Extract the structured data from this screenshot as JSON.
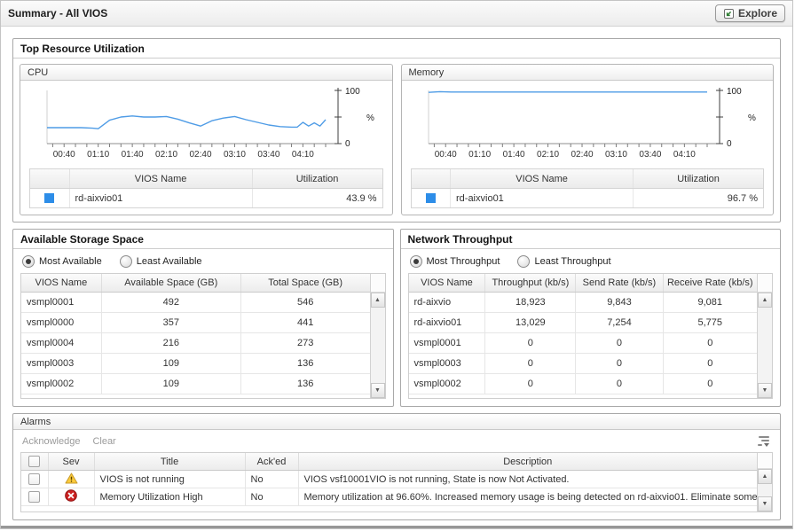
{
  "titlebar": {
    "title": "Summary - All VIOS",
    "explore": "Explore"
  },
  "top_resource": {
    "title": "Top Resource Utilization"
  },
  "chart_data": [
    {
      "type": "line",
      "title": "CPU",
      "ylabel": "%",
      "ylim": [
        0,
        100
      ],
      "yticks": [
        0,
        50,
        100
      ],
      "ytick_labels": [
        "0",
        "100"
      ],
      "x_tick_labels": [
        "00:40",
        "01:10",
        "01:40",
        "02:10",
        "02:40",
        "03:10",
        "03:40",
        "04:10"
      ],
      "x_label_minutes": [
        40,
        70,
        100,
        130,
        160,
        190,
        220,
        250
      ],
      "x_minor_step": 10,
      "x_range_minutes": [
        25,
        270
      ],
      "line_color": "#4f9ce6",
      "grid": false,
      "legend_position": "bottom-table",
      "series": [
        {
          "name": "rd-aixvio01",
          "x_minutes": [
            25,
            40,
            55,
            65,
            70,
            80,
            90,
            100,
            110,
            120,
            130,
            140,
            150,
            160,
            170,
            180,
            190,
            200,
            210,
            220,
            230,
            240,
            245,
            250,
            255,
            260,
            265,
            270
          ],
          "values": [
            30,
            30,
            30,
            29,
            28,
            44,
            50,
            52,
            50,
            50,
            51,
            46,
            39,
            33,
            43,
            48,
            51,
            45,
            40,
            35,
            32,
            31,
            31,
            40,
            33,
            39,
            33,
            45
          ]
        }
      ],
      "legend": {
        "swatch_color": "#2d8de8",
        "headers": [
          "VIOS Name",
          "Utilization"
        ],
        "rows": [
          {
            "name": "rd-aixvio01",
            "value": "43.9 %"
          }
        ]
      }
    },
    {
      "type": "line",
      "title": "Memory",
      "ylabel": "%",
      "ylim": [
        0,
        100
      ],
      "yticks": [
        0,
        50,
        100
      ],
      "ytick_labels": [
        "0",
        "100"
      ],
      "x_tick_labels": [
        "00:40",
        "01:10",
        "01:40",
        "02:10",
        "02:40",
        "03:10",
        "03:40",
        "04:10"
      ],
      "x_label_minutes": [
        40,
        70,
        100,
        130,
        160,
        190,
        220,
        250
      ],
      "x_minor_step": 10,
      "x_range_minutes": [
        25,
        270
      ],
      "line_color": "#4f9ce6",
      "grid": false,
      "legend_position": "bottom-table",
      "series": [
        {
          "name": "rd-aixvio01",
          "x_minutes": [
            25,
            35,
            45,
            60,
            80,
            100,
            120,
            140,
            160,
            180,
            200,
            220,
            240,
            260,
            270
          ],
          "values": [
            96.3,
            97.6,
            97,
            97,
            97,
            97,
            97,
            97,
            97,
            97,
            97,
            97,
            97,
            97,
            97
          ]
        }
      ],
      "legend": {
        "swatch_color": "#2d8de8",
        "headers": [
          "VIOS Name",
          "Utilization"
        ],
        "rows": [
          {
            "name": "rd-aixvio01",
            "value": "96.7 %"
          }
        ]
      }
    }
  ],
  "storage": {
    "title": "Available Storage Space",
    "radios": [
      {
        "label": "Most Available",
        "selected": true
      },
      {
        "label": "Least Available",
        "selected": false
      }
    ],
    "columns": [
      "VIOS Name",
      "Available Space (GB)",
      "Total Space (GB)"
    ],
    "col_widths": [
      "23%",
      "40%",
      "37%"
    ],
    "rows": [
      [
        "vsmpl0001",
        "492",
        "546"
      ],
      [
        "vsmpl0000",
        "357",
        "441"
      ],
      [
        "vsmpl0004",
        "216",
        "273"
      ],
      [
        "vsmpl0003",
        "109",
        "136"
      ],
      [
        "vsmpl0002",
        "109",
        "136"
      ]
    ]
  },
  "network": {
    "title": "Network Throughput",
    "radios": [
      {
        "label": "Most Throughput",
        "selected": true
      },
      {
        "label": "Least Throughput",
        "selected": false
      }
    ],
    "columns": [
      "VIOS Name",
      "Throughput (kb/s)",
      "Send Rate (kb/s)",
      "Receive Rate (kb/s)"
    ],
    "col_widths": [
      "22%",
      "26%",
      "25%",
      "27%"
    ],
    "rows": [
      [
        "rd-aixvio",
        "18,923",
        "9,843",
        "9,081"
      ],
      [
        "rd-aixvio01",
        "13,029",
        "7,254",
        "5,775"
      ],
      [
        "vsmpl0001",
        "0",
        "0",
        "0"
      ],
      [
        "vsmpl0003",
        "0",
        "0",
        "0"
      ],
      [
        "vsmpl0002",
        "0",
        "0",
        "0"
      ]
    ]
  },
  "alarms": {
    "title": "Alarms",
    "toolbar": {
      "acknowledge": "Acknowledge",
      "clear": "Clear"
    },
    "columns": [
      "Sev",
      "Title",
      "Ack'ed",
      "Description"
    ],
    "rows": [
      {
        "severity": "warning",
        "title": "VIOS is not running",
        "acked": "No",
        "description": "VIOS vsf10001VIO is not running, State is now Not Activated."
      },
      {
        "severity": "fatal",
        "title": "Memory Utilization High",
        "acked": "No",
        "description": "Memory utilization at 96.60%. Increased memory usage is being detected on rd-aixvio01. Eliminate some..."
      }
    ]
  },
  "colors": {
    "chart_line": "#4f9ce6",
    "legend_swatch": "#2d8de8",
    "warning_icon": "#fbcb3c",
    "fatal_icon": "#cc2222"
  }
}
